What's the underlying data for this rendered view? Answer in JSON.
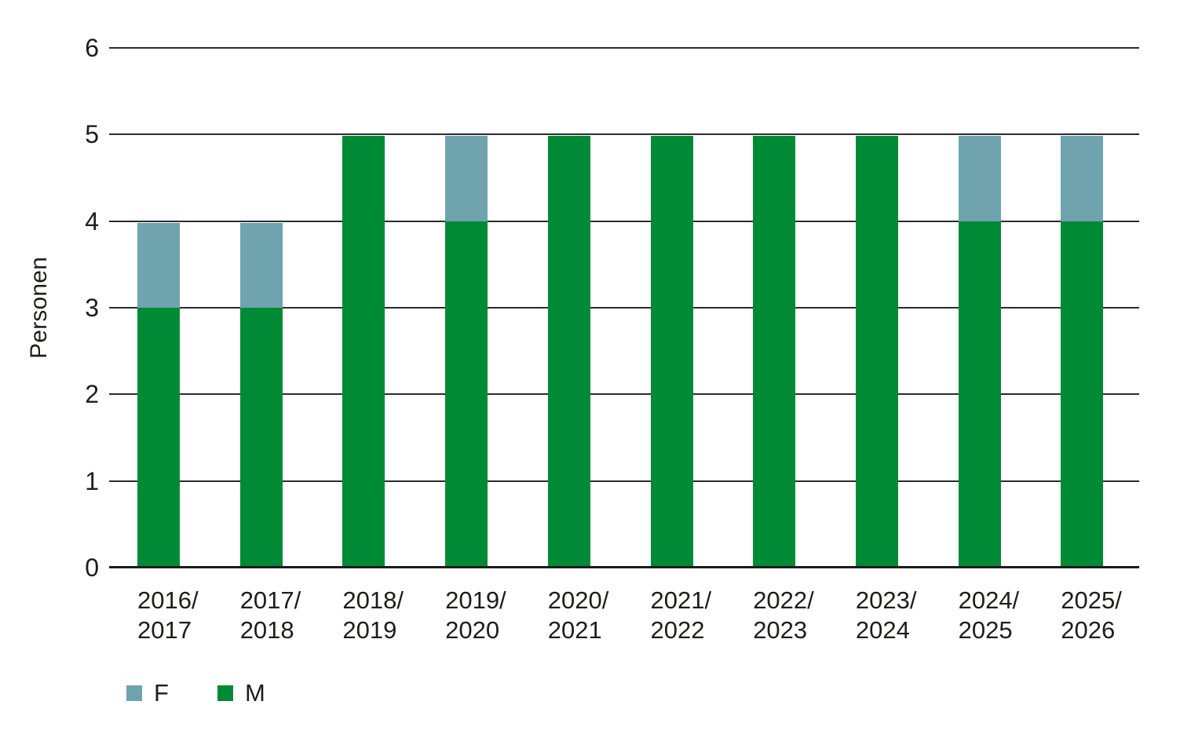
{
  "chart_data": {
    "type": "bar",
    "stacked": true,
    "title": "",
    "xlabel": "",
    "ylabel": "Personen",
    "ylim": [
      0,
      6
    ],
    "yticks": [
      0,
      1,
      2,
      3,
      4,
      5,
      6
    ],
    "grid": true,
    "legend_position": "bottom-left",
    "categories": [
      "2016/2017",
      "2017/2018",
      "2018/2019",
      "2019/2020",
      "2020/2021",
      "2021/2022",
      "2022/2023",
      "2023/2024",
      "2024/2025",
      "2025/2026"
    ],
    "category_labels": [
      [
        "2016/",
        "2017"
      ],
      [
        "2017/",
        "2018"
      ],
      [
        "2018/",
        "2019"
      ],
      [
        "2019/",
        "2020"
      ],
      [
        "2020/",
        "2021"
      ],
      [
        "2021/",
        "2022"
      ],
      [
        "2022/",
        "2023"
      ],
      [
        "2023/",
        "2024"
      ],
      [
        "2024/",
        "2025"
      ],
      [
        "2025/",
        "2026"
      ]
    ],
    "series": [
      {
        "name": "M",
        "color": "#008A36",
        "values": [
          3,
          3,
          5,
          4,
          5,
          5,
          5,
          5,
          4,
          4
        ]
      },
      {
        "name": "F",
        "color": "#6FA4AE",
        "values": [
          1,
          1,
          0,
          1,
          0,
          0,
          0,
          0,
          1,
          1
        ]
      }
    ],
    "legend": [
      {
        "label": "F",
        "color": "#6FA4AE"
      },
      {
        "label": "M",
        "color": "#008A36"
      }
    ],
    "colors": {
      "grid_line": "#2c2c2c",
      "axis_line": "#1d1d1b",
      "text": "#1d1d1b",
      "background": "#ffffff"
    }
  }
}
